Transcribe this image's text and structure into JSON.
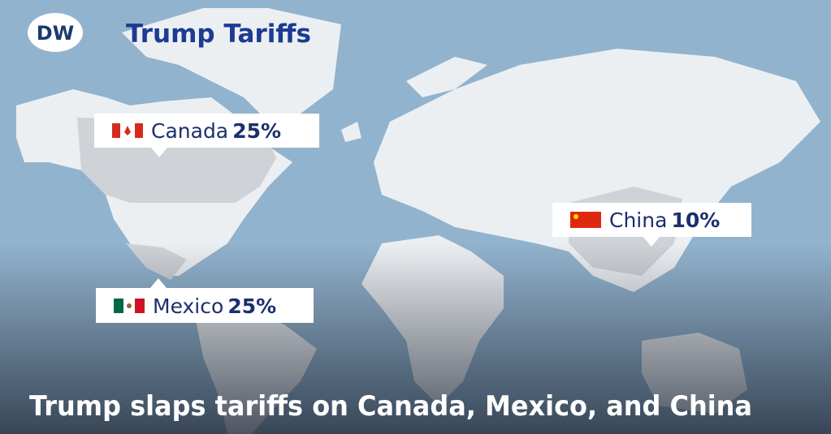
{
  "logo": "DW",
  "header": {
    "title": "Trump Tariffs"
  },
  "labels": [
    {
      "country": "Canada",
      "rate": "25%"
    },
    {
      "country": "Mexico",
      "rate": "25%"
    },
    {
      "country": "China",
      "rate": "10%"
    }
  ],
  "caption": "Trump slaps tariffs on Canada, Mexico, and China"
}
